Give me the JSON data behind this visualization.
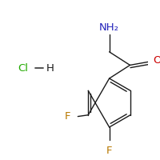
{
  "bg_color": "#ffffff",
  "bond_color": "#1a1a1a",
  "N_color": "#2222bb",
  "O_color": "#cc0000",
  "F_color": "#b87800",
  "Cl_color": "#22aa00",
  "H_bond_color": "#444444",
  "label_NH2": "NH₂",
  "label_O": "O",
  "label_F1": "F",
  "label_F2": "F",
  "label_Cl": "Cl",
  "label_H": "H",
  "font_size_atom": 9.5,
  "line_width": 1.0
}
